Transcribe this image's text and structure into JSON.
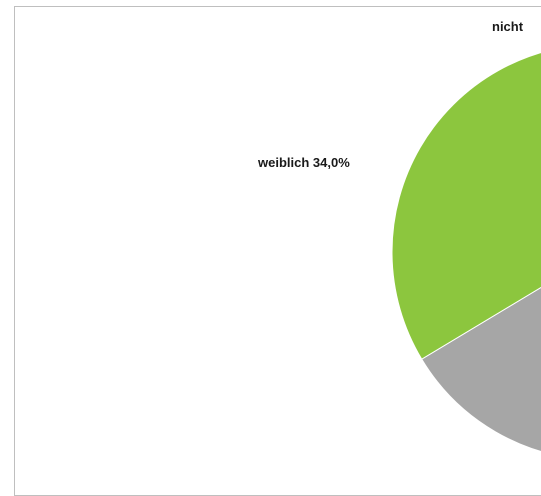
{
  "chart_data": {
    "type": "pie",
    "title": "",
    "slices": [
      {
        "label": "weiblich",
        "value": 34.0,
        "value_label": "34,0%",
        "color": "#8cc63e"
      },
      {
        "label": "nicht",
        "value": 16.0,
        "value_label": "",
        "color": "#a6a6a6"
      },
      {
        "label": "",
        "value": 50.0,
        "value_label": "",
        "color": "#8cc63e"
      }
    ],
    "visible_labels": {
      "weiblich": "weiblich 34,0%",
      "top": "nicht"
    },
    "slice_border_color": "#ffffff"
  }
}
